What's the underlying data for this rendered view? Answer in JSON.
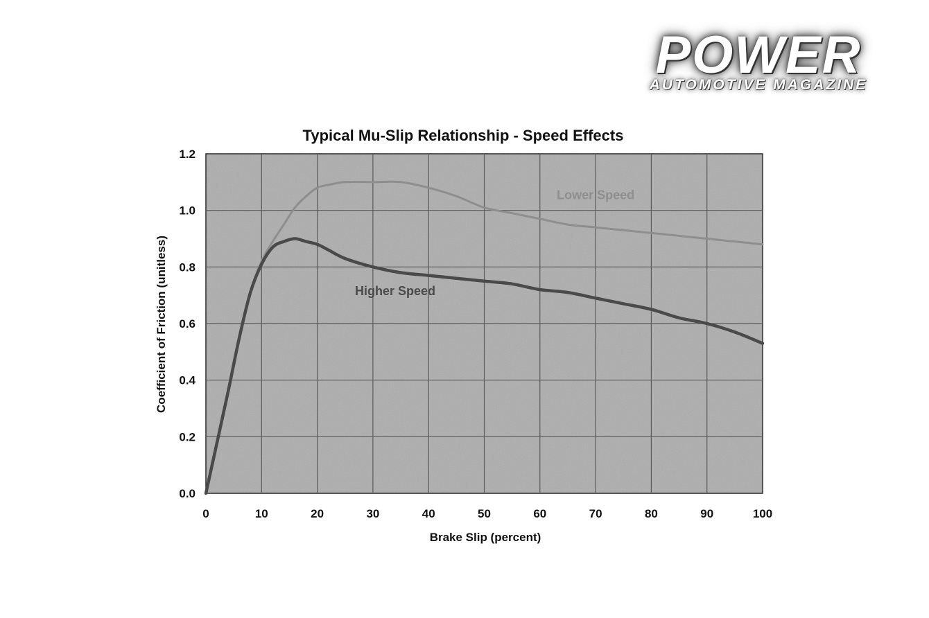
{
  "logo": {
    "word": "POWER",
    "subtitle": "AUTOMOTIVE MAGAZINE"
  },
  "colors": {
    "plot_background": "#adadad",
    "grid": "#5a5a5a",
    "higher_speed_line": "#4a4a4a",
    "lower_speed_line": "#8e8e8e"
  },
  "chart_data": {
    "type": "line",
    "title": "Typical Mu-Slip Relationship - Speed Effects",
    "xlabel": "Brake Slip (percent)",
    "ylabel": "Coefficient of Friction (unitless)",
    "xlim": [
      0,
      100
    ],
    "ylim": [
      0,
      1.2
    ],
    "x_ticks": [
      "0",
      "10",
      "20",
      "30",
      "40",
      "50",
      "60",
      "70",
      "80",
      "90",
      "100"
    ],
    "y_ticks": [
      "0.0",
      "0.2",
      "0.4",
      "0.6",
      "0.8",
      "1.0",
      "1.2"
    ],
    "grid": true,
    "series": [
      {
        "name": "Lower Speed",
        "x": [
          0,
          2,
          4,
          6,
          8,
          10,
          12,
          14,
          16,
          18,
          20,
          22,
          25,
          30,
          35,
          40,
          45,
          50,
          55,
          60,
          65,
          70,
          75,
          80,
          85,
          90,
          95,
          100
        ],
        "values": [
          0,
          0.18,
          0.36,
          0.55,
          0.71,
          0.82,
          0.89,
          0.95,
          1.01,
          1.05,
          1.08,
          1.09,
          1.1,
          1.1,
          1.1,
          1.08,
          1.05,
          1.01,
          0.99,
          0.97,
          0.95,
          0.94,
          0.93,
          0.92,
          0.91,
          0.9,
          0.89,
          0.88
        ]
      },
      {
        "name": "Higher Speed",
        "x": [
          0,
          2,
          4,
          6,
          8,
          10,
          12,
          14,
          16,
          18,
          20,
          22,
          25,
          30,
          35,
          40,
          45,
          50,
          55,
          60,
          65,
          70,
          75,
          80,
          85,
          90,
          95,
          100
        ],
        "values": [
          0,
          0.18,
          0.36,
          0.55,
          0.71,
          0.81,
          0.87,
          0.89,
          0.9,
          0.89,
          0.88,
          0.86,
          0.83,
          0.8,
          0.78,
          0.77,
          0.76,
          0.75,
          0.74,
          0.72,
          0.71,
          0.69,
          0.67,
          0.65,
          0.62,
          0.6,
          0.57,
          0.53
        ]
      }
    ],
    "annotations": [
      {
        "text": "Lower Speed",
        "x": 70,
        "y": 1.04
      },
      {
        "text": "Higher Speed",
        "x": 34,
        "y": 0.7
      }
    ]
  }
}
